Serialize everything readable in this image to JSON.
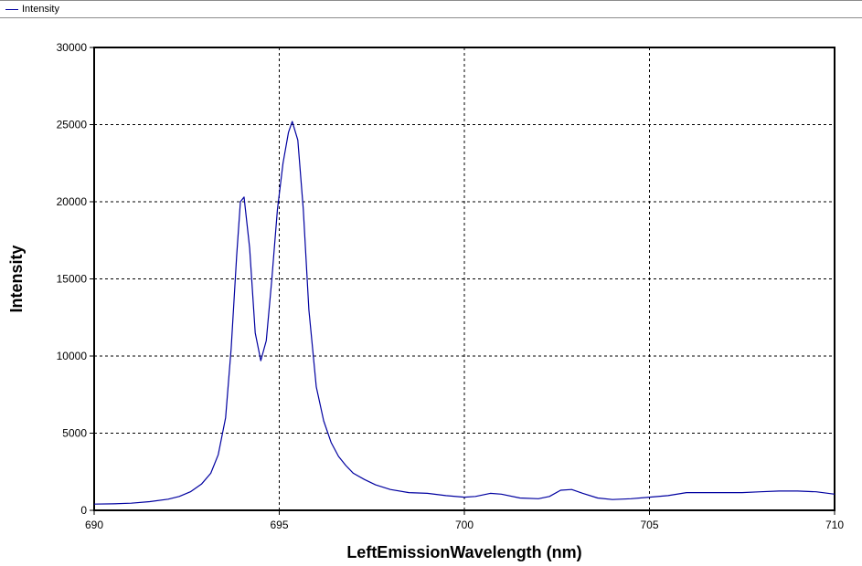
{
  "legend": {
    "label": "Intensity",
    "color": "#0000a0"
  },
  "chart_data": {
    "type": "line",
    "xlabel": "LeftEmissionWavelength (nm)",
    "ylabel": "Intensity",
    "xlim": [
      690,
      710
    ],
    "ylim": [
      0,
      30000
    ],
    "x_ticks": [
      690,
      695,
      700,
      705,
      710
    ],
    "y_ticks": [
      0,
      5000,
      10000,
      15000,
      20000,
      25000,
      30000
    ],
    "grid": true,
    "legend_position": "top-left",
    "series": [
      {
        "name": "Intensity",
        "color": "#0000a0",
        "points": [
          [
            690.0,
            400
          ],
          [
            690.5,
            420
          ],
          [
            691.0,
            460
          ],
          [
            691.5,
            560
          ],
          [
            692.0,
            720
          ],
          [
            692.3,
            900
          ],
          [
            692.6,
            1200
          ],
          [
            692.9,
            1700
          ],
          [
            693.15,
            2400
          ],
          [
            693.35,
            3600
          ],
          [
            693.55,
            6000
          ],
          [
            693.7,
            10500
          ],
          [
            693.85,
            16500
          ],
          [
            693.95,
            20000
          ],
          [
            694.05,
            20300
          ],
          [
            694.2,
            17000
          ],
          [
            694.35,
            11500
          ],
          [
            694.5,
            9700
          ],
          [
            694.65,
            11000
          ],
          [
            694.8,
            15000
          ],
          [
            694.95,
            19500
          ],
          [
            695.1,
            22500
          ],
          [
            695.25,
            24500
          ],
          [
            695.35,
            25200
          ],
          [
            695.5,
            24000
          ],
          [
            695.65,
            19500
          ],
          [
            695.8,
            13000
          ],
          [
            696.0,
            8000
          ],
          [
            696.2,
            5800
          ],
          [
            696.4,
            4400
          ],
          [
            696.6,
            3500
          ],
          [
            696.8,
            2900
          ],
          [
            697.0,
            2400
          ],
          [
            697.3,
            2000
          ],
          [
            697.6,
            1650
          ],
          [
            698.0,
            1350
          ],
          [
            698.5,
            1150
          ],
          [
            699.0,
            1100
          ],
          [
            699.5,
            950
          ],
          [
            700.0,
            850
          ],
          [
            700.3,
            900
          ],
          [
            700.7,
            1100
          ],
          [
            701.0,
            1050
          ],
          [
            701.5,
            800
          ],
          [
            702.0,
            750
          ],
          [
            702.3,
            900
          ],
          [
            702.6,
            1300
          ],
          [
            702.9,
            1350
          ],
          [
            703.2,
            1100
          ],
          [
            703.6,
            800
          ],
          [
            704.0,
            700
          ],
          [
            704.5,
            750
          ],
          [
            705.0,
            850
          ],
          [
            705.5,
            950
          ],
          [
            706.0,
            1150
          ],
          [
            706.5,
            1150
          ],
          [
            707.0,
            1150
          ],
          [
            707.5,
            1150
          ],
          [
            708.0,
            1200
          ],
          [
            708.5,
            1250
          ],
          [
            709.0,
            1250
          ],
          [
            709.5,
            1200
          ],
          [
            710.0,
            1050
          ]
        ]
      }
    ]
  }
}
